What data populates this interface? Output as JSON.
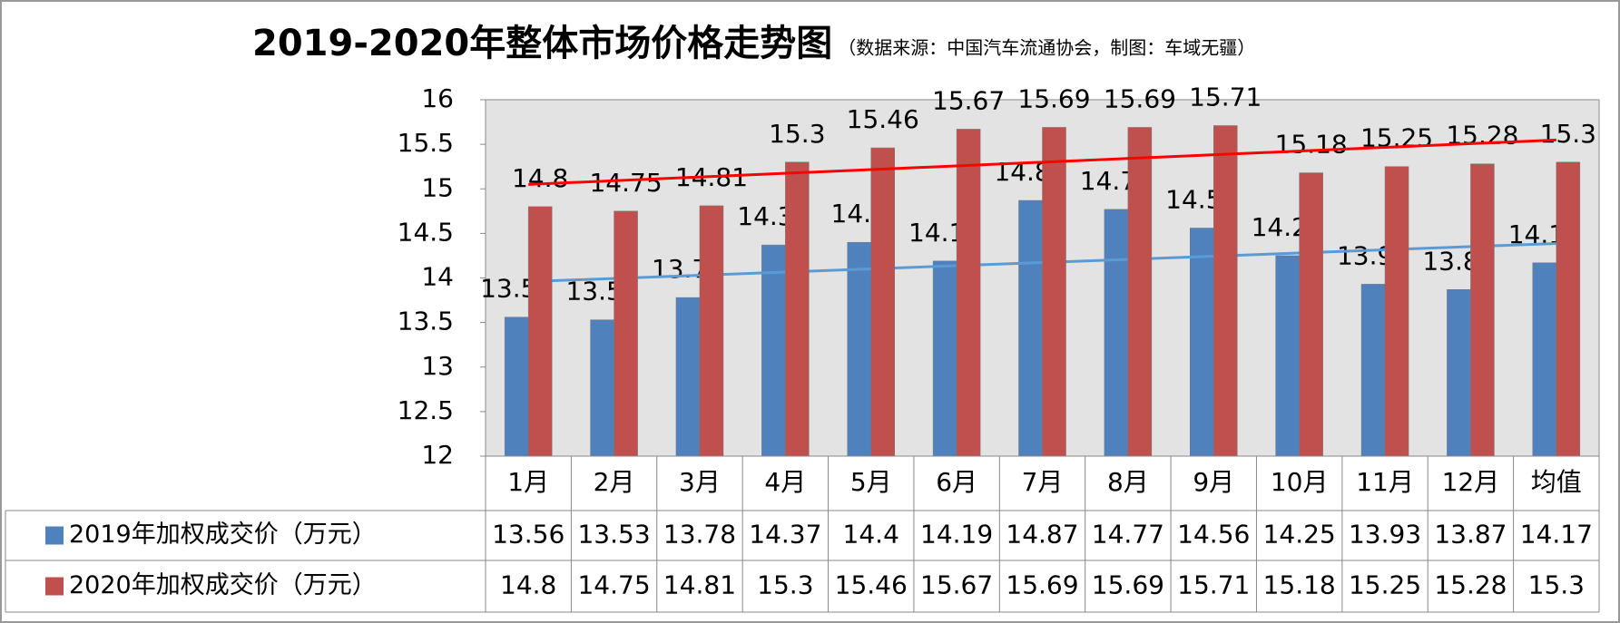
{
  "chart_data": {
    "type": "bar",
    "title": "2019-2020年整体市场价格走势图",
    "subtitle": "（数据来源：中国汽车流通协会，制图：车域无疆）",
    "categories": [
      "1月",
      "2月",
      "3月",
      "4月",
      "5月",
      "6月",
      "7月",
      "8月",
      "9月",
      "10月",
      "11月",
      "12月",
      "均值"
    ],
    "series": [
      {
        "name": "2019年加权成交价（万元）",
        "color": "#4f81bd",
        "trend_color": "#5b9bd5",
        "values": [
          13.56,
          13.53,
          13.78,
          14.37,
          14.4,
          14.19,
          14.87,
          14.77,
          14.56,
          14.25,
          13.93,
          13.87,
          14.17
        ]
      },
      {
        "name": "2020年加权成交价（万元）",
        "color": "#c0504d",
        "trend_color": "#ff0000",
        "values": [
          14.8,
          14.75,
          14.81,
          15.3,
          15.46,
          15.67,
          15.69,
          15.69,
          15.71,
          15.18,
          15.25,
          15.28,
          15.3
        ]
      }
    ],
    "ylim": [
      12,
      16
    ],
    "yticks": [
      12,
      12.5,
      13,
      13.5,
      14,
      14.5,
      15,
      15.5,
      16
    ],
    "trendline": true,
    "data_table": true
  }
}
